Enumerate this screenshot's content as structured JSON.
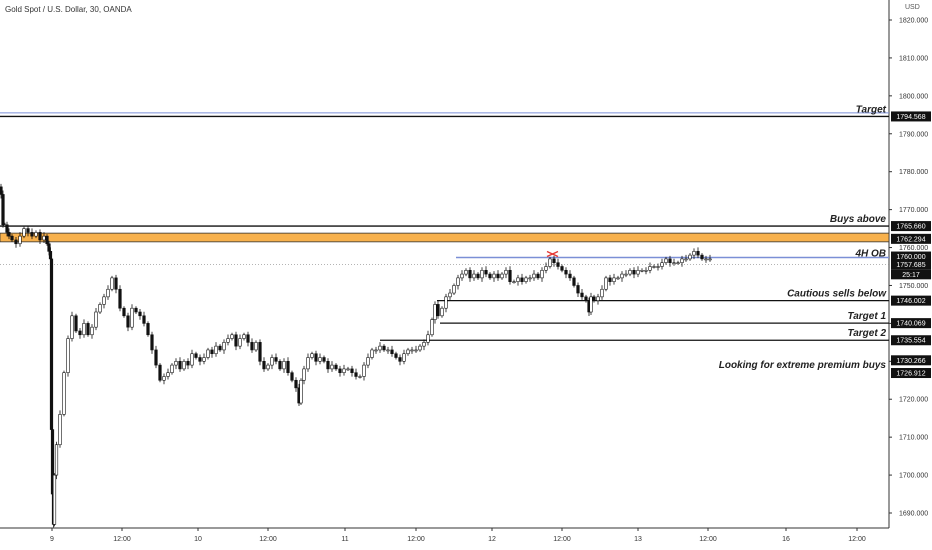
{
  "header": {
    "title": "Gold Spot / U.S. Dollar, 30, OANDA"
  },
  "axis": {
    "currency": "USD"
  },
  "chart_data": {
    "type": "candlestick",
    "title": "Gold Spot / U.S. Dollar, 30, OANDA",
    "ylim": [
      1685,
      1826
    ],
    "y_ticks": [
      1690,
      1700,
      1710,
      1720,
      1730,
      1740,
      1750,
      1760,
      1770,
      1780,
      1790,
      1800,
      1810,
      1820
    ],
    "y_tick_labels": [
      "1690.000",
      "1700.000",
      "1710.000",
      "1720.000",
      "1730.000",
      "1740.000",
      "1750.000",
      "1760.000",
      "1770.000",
      "1780.000",
      "1790.000",
      "1800.000",
      "1810.000",
      "1820.000"
    ],
    "x_ticks": [
      "9",
      "12:00",
      "10",
      "12:00",
      "11",
      "12:00",
      "12",
      "12:00",
      "13",
      "12:00",
      "16",
      "12:00"
    ],
    "series_color_up": "#000000",
    "series_color_down": "#000000",
    "price_path": [
      [
        0,
        1776
      ],
      [
        2,
        1774
      ],
      [
        4,
        1766
      ],
      [
        6,
        1766
      ],
      [
        8,
        1764
      ],
      [
        10,
        1763
      ],
      [
        14,
        1762
      ],
      [
        18,
        1761
      ],
      [
        22,
        1763
      ],
      [
        26,
        1765
      ],
      [
        30,
        1764
      ],
      [
        34,
        1763
      ],
      [
        38,
        1764
      ],
      [
        42,
        1762
      ],
      [
        46,
        1763
      ],
      [
        48,
        1761
      ],
      [
        50,
        1759
      ],
      [
        51,
        1757
      ],
      [
        52,
        1712
      ],
      [
        53,
        1695
      ],
      [
        54,
        1687
      ],
      [
        55,
        1700
      ],
      [
        58,
        1708
      ],
      [
        62,
        1716
      ],
      [
        66,
        1727
      ],
      [
        70,
        1736
      ],
      [
        74,
        1742
      ],
      [
        78,
        1738
      ],
      [
        82,
        1737
      ],
      [
        86,
        1740
      ],
      [
        90,
        1737
      ],
      [
        94,
        1739
      ],
      [
        98,
        1743
      ],
      [
        102,
        1745
      ],
      [
        106,
        1747
      ],
      [
        110,
        1749
      ],
      [
        114,
        1752
      ],
      [
        118,
        1749
      ],
      [
        122,
        1744
      ],
      [
        126,
        1742
      ],
      [
        130,
        1739
      ],
      [
        134,
        1744
      ],
      [
        138,
        1743
      ],
      [
        142,
        1742
      ],
      [
        146,
        1740
      ],
      [
        150,
        1737
      ],
      [
        154,
        1733
      ],
      [
        158,
        1729
      ],
      [
        162,
        1725
      ],
      [
        166,
        1726
      ],
      [
        170,
        1727
      ],
      [
        174,
        1729
      ],
      [
        178,
        1730
      ],
      [
        182,
        1728
      ],
      [
        186,
        1730
      ],
      [
        190,
        1729
      ],
      [
        194,
        1732
      ],
      [
        198,
        1731
      ],
      [
        202,
        1730
      ],
      [
        206,
        1731
      ],
      [
        210,
        1733
      ],
      [
        214,
        1732
      ],
      [
        218,
        1734
      ],
      [
        222,
        1733
      ],
      [
        226,
        1735
      ],
      [
        230,
        1736
      ],
      [
        234,
        1737
      ],
      [
        238,
        1734
      ],
      [
        242,
        1736
      ],
      [
        246,
        1737
      ],
      [
        250,
        1735
      ],
      [
        254,
        1733
      ],
      [
        258,
        1735
      ],
      [
        262,
        1730
      ],
      [
        266,
        1728
      ],
      [
        270,
        1729
      ],
      [
        274,
        1731
      ],
      [
        278,
        1730
      ],
      [
        282,
        1728
      ],
      [
        286,
        1730
      ],
      [
        290,
        1727
      ],
      [
        294,
        1725
      ],
      [
        298,
        1723
      ],
      [
        300,
        1719
      ],
      [
        302,
        1725
      ],
      [
        306,
        1728
      ],
      [
        310,
        1731
      ],
      [
        314,
        1732
      ],
      [
        318,
        1730
      ],
      [
        322,
        1731
      ],
      [
        326,
        1730
      ],
      [
        330,
        1728
      ],
      [
        334,
        1729
      ],
      [
        338,
        1728
      ],
      [
        342,
        1727
      ],
      [
        346,
        1728
      ],
      [
        350,
        1728
      ],
      [
        354,
        1727
      ],
      [
        358,
        1726
      ],
      [
        362,
        1726
      ],
      [
        366,
        1729
      ],
      [
        370,
        1731
      ],
      [
        374,
        1733
      ],
      [
        378,
        1733
      ],
      [
        382,
        1734
      ],
      [
        386,
        1733
      ],
      [
        390,
        1733
      ],
      [
        394,
        1732
      ],
      [
        398,
        1731
      ],
      [
        402,
        1730
      ],
      [
        406,
        1732
      ],
      [
        410,
        1733
      ],
      [
        414,
        1733
      ],
      [
        418,
        1733
      ],
      [
        422,
        1734
      ],
      [
        426,
        1735
      ],
      [
        430,
        1737
      ],
      [
        434,
        1741
      ],
      [
        436,
        1745
      ],
      [
        440,
        1742
      ],
      [
        444,
        1744
      ],
      [
        448,
        1747
      ],
      [
        452,
        1748
      ],
      [
        456,
        1750
      ],
      [
        460,
        1752
      ],
      [
        464,
        1753
      ],
      [
        468,
        1754
      ],
      [
        472,
        1752
      ],
      [
        476,
        1753
      ],
      [
        480,
        1752
      ],
      [
        484,
        1754
      ],
      [
        488,
        1753
      ],
      [
        492,
        1752
      ],
      [
        496,
        1753
      ],
      [
        500,
        1752
      ],
      [
        504,
        1753
      ],
      [
        508,
        1754
      ],
      [
        512,
        1751
      ],
      [
        516,
        1751
      ],
      [
        520,
        1752
      ],
      [
        524,
        1751
      ],
      [
        528,
        1752
      ],
      [
        532,
        1752
      ],
      [
        536,
        1753
      ],
      [
        540,
        1752
      ],
      [
        544,
        1754
      ],
      [
        548,
        1755
      ],
      [
        552,
        1757
      ],
      [
        556,
        1756
      ],
      [
        560,
        1755
      ],
      [
        564,
        1754
      ],
      [
        568,
        1753
      ],
      [
        572,
        1752
      ],
      [
        576,
        1750
      ],
      [
        580,
        1748
      ],
      [
        584,
        1747
      ],
      [
        588,
        1746
      ],
      [
        590,
        1743
      ],
      [
        592,
        1747
      ],
      [
        596,
        1746
      ],
      [
        600,
        1747
      ],
      [
        604,
        1749
      ],
      [
        608,
        1752
      ],
      [
        612,
        1751
      ],
      [
        616,
        1752
      ],
      [
        620,
        1752
      ],
      [
        624,
        1753
      ],
      [
        628,
        1753
      ],
      [
        632,
        1754
      ],
      [
        636,
        1753
      ],
      [
        640,
        1754
      ],
      [
        644,
        1754
      ],
      [
        648,
        1754
      ],
      [
        652,
        1755
      ],
      [
        656,
        1755
      ],
      [
        660,
        1755
      ],
      [
        664,
        1756
      ],
      [
        668,
        1757
      ],
      [
        672,
        1756
      ],
      [
        676,
        1756
      ],
      [
        680,
        1756
      ],
      [
        684,
        1757
      ],
      [
        688,
        1757
      ],
      [
        692,
        1758
      ],
      [
        696,
        1759
      ],
      [
        700,
        1758
      ],
      [
        704,
        1757
      ],
      [
        708,
        1757
      ],
      [
        712,
        1757
      ]
    ],
    "levels": [
      {
        "price": 1794.568,
        "label": "Target",
        "badge": "1794.568",
        "color": "#000000"
      },
      {
        "price": 1765.66,
        "label": "Buys above",
        "badge": "1765.660",
        "color": "#000000"
      },
      {
        "price": 1762.294,
        "label": "",
        "badge": "1762.294",
        "color": "#000000"
      },
      {
        "price": 1760.0,
        "label": "",
        "badge": "1760.000",
        "color": "#000000"
      },
      {
        "price": 1757.685,
        "label": "",
        "badge": "1757.685",
        "color": "#000000"
      },
      {
        "price": 1746.002,
        "label": "Cautious sells below",
        "badge": "1746.002",
        "color": "#000000"
      },
      {
        "price": 1740.069,
        "label": "Target 1",
        "badge": "1740.069",
        "color": "#000000"
      },
      {
        "price": 1735.554,
        "label": "Target 2",
        "badge": "1735.554",
        "color": "#000000"
      },
      {
        "price": 1730.266,
        "label": "",
        "badge": "1730.266",
        "color": "#000000"
      },
      {
        "price": 1726.912,
        "label": "",
        "badge": "1726.912",
        "color": "#000000"
      }
    ],
    "zones": [
      {
        "name": "orange-zone",
        "from": 1761.5,
        "to": 1763.8,
        "color": "#f7b14d"
      },
      {
        "name": "looking-for-extreme-premium-buys-zone",
        "from": 1726.912,
        "to": 1730.266,
        "label": "Looking for extreme premium buys",
        "color": "#8fd18f"
      }
    ],
    "annotations": {
      "ob_label": "4H OB",
      "ob_price": 1760.0,
      "countdown": "25:17",
      "countdown_price": 1757.685,
      "blue_line_price": 1795.5
    }
  }
}
